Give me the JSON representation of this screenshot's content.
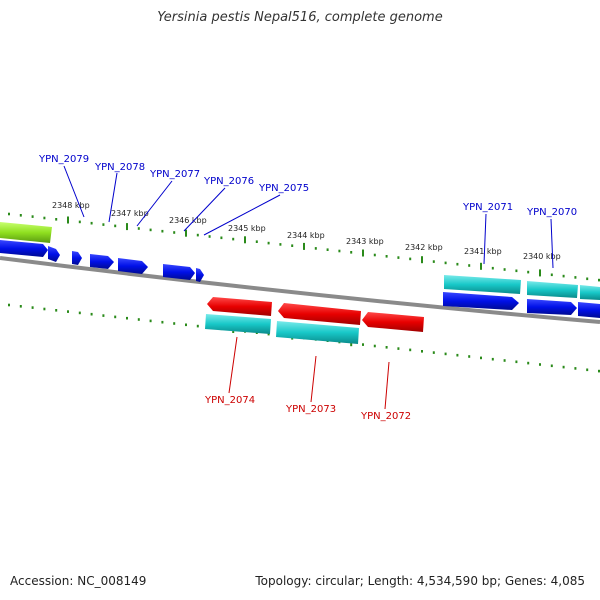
{
  "title": "Yersinia pestis Nepal516, complete genome",
  "footer": {
    "accession": "Accession: NC_008149",
    "topology": "Topology: circular; Length: 4,534,590 bp; Genes: 4,085"
  },
  "colors": {
    "backbone": "#8a8a8a",
    "tick": "#2a8a1a",
    "forward_cds": "#0010e8",
    "reverse_cds": "#e80000",
    "rna_gene": "#18c8c8",
    "other_feature": "#90e020",
    "top_label": "#0000cc",
    "bottom_label": "#cc0000"
  },
  "scale_labels": [
    "2348 kbp",
    "2347 kbp",
    "2346 kbp",
    "2345 kbp",
    "2344 kbp",
    "2343 kbp",
    "2342 kbp",
    "2341 kbp",
    "2340 kbp"
  ],
  "top_gene_labels": [
    "YPN_2079",
    "YPN_2078",
    "YPN_2077",
    "YPN_2076",
    "YPN_2075",
    "YPN_2071",
    "YPN_2070"
  ],
  "bottom_gene_labels": [
    "YPN_2074",
    "YPN_2073",
    "YPN_2072"
  ]
}
